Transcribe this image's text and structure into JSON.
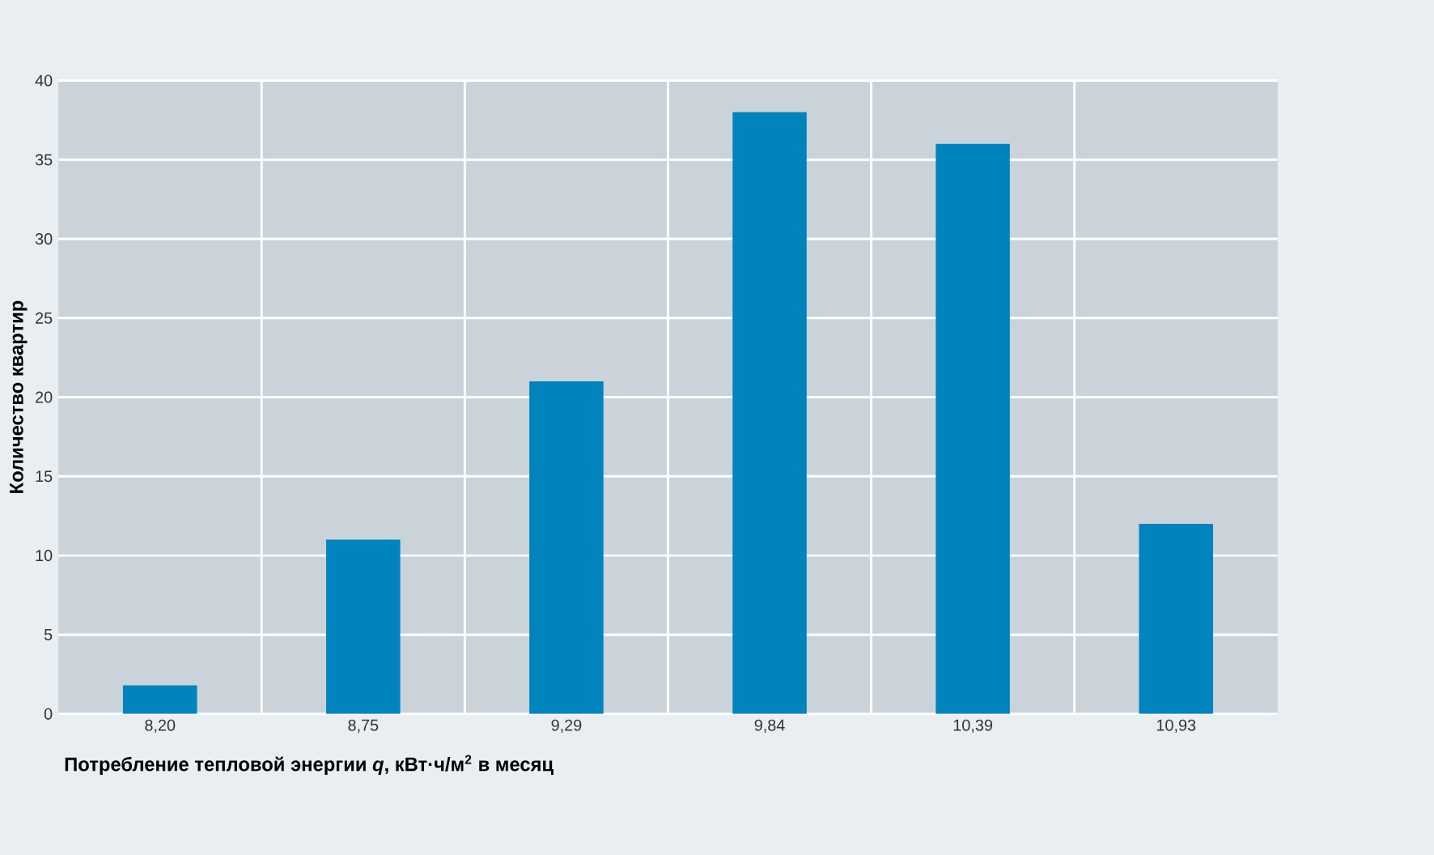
{
  "chart_data": {
    "type": "bar",
    "categories": [
      "8,20",
      "8,75",
      "9,29",
      "9,84",
      "10,39",
      "10,93"
    ],
    "values": [
      1.8,
      11,
      21,
      38,
      36,
      12
    ],
    "color": "#0084bd",
    "xlabel": "Потребление тепловой энергии *q*, кВт·ч/м$^{2}$ в месяц",
    "ylabel": "Количество квартир",
    "ylim": [
      0,
      40
    ],
    "yticks": [
      0,
      5,
      10,
      15,
      20,
      25,
      30,
      35,
      40
    ],
    "grid": true
  }
}
